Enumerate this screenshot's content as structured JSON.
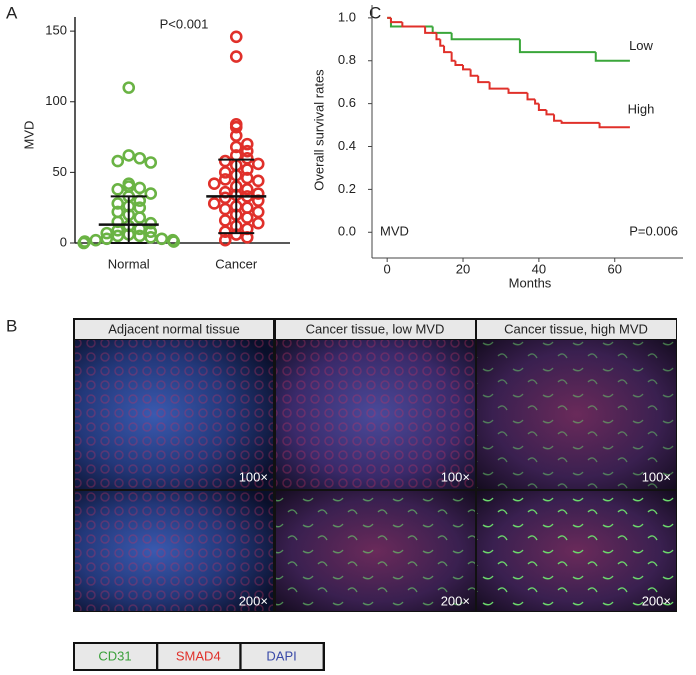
{
  "figure": {
    "panel_labels": [
      "A",
      "B",
      "C"
    ],
    "panel_b": {
      "columns": [
        "Adjacent normal tissue",
        "Cancer tissue, low MVD",
        "Cancer tissue, high MVD"
      ],
      "magnifications": [
        "100×",
        "200×"
      ],
      "stains": [
        {
          "label": "CD31",
          "color": "#3aa03a"
        },
        {
          "label": "SMAD4",
          "color": "#e0302a"
        },
        {
          "label": "DAPI",
          "color": "#3a4aa8"
        }
      ]
    }
  },
  "chart_data": [
    {
      "type": "dot",
      "annotation": "P<0.001",
      "ylabel": "MVD",
      "categories": [
        "Normal",
        "Cancer"
      ],
      "colors": [
        "#6ab344",
        "#e0302a"
      ],
      "points": [
        [
          110,
          62,
          60,
          58,
          57,
          42,
          40,
          39,
          38,
          35,
          33,
          30,
          28,
          26,
          25,
          22,
          20,
          18,
          15,
          14,
          12,
          10,
          9,
          8,
          7,
          6,
          5,
          5,
          4,
          3,
          3,
          2,
          2,
          1,
          1,
          0
        ],
        [
          146,
          132,
          84,
          82,
          76,
          70,
          68,
          65,
          62,
          60,
          58,
          56,
          55,
          52,
          50,
          48,
          46,
          45,
          44,
          42,
          40,
          38,
          36,
          35,
          34,
          33,
          32,
          30,
          28,
          26,
          25,
          24,
          22,
          20,
          18,
          16,
          14,
          12,
          10,
          8,
          6,
          4,
          2
        ]
      ],
      "means": [
        13,
        33
      ],
      "lower": [
        0,
        7
      ],
      "upper": [
        33,
        59
      ],
      "ylim": [
        0,
        160
      ],
      "yticks": [
        0,
        50,
        100,
        150
      ]
    },
    {
      "type": "step",
      "xlabel": "Months",
      "ylabel": "Overall survival rates",
      "annotations": [
        "MVD",
        "P=0.006"
      ],
      "series": [
        {
          "name": "Low",
          "color": "#3aa63a",
          "x": [
            0,
            1,
            12,
            17,
            35,
            55,
            64
          ],
          "values": [
            1.0,
            0.96,
            0.93,
            0.9,
            0.84,
            0.8,
            0.8
          ]
        },
        {
          "name": "High",
          "color": "#e0302a",
          "x": [
            0,
            1,
            4,
            10,
            13,
            14,
            15,
            17,
            18,
            20,
            22,
            24,
            27,
            32,
            37,
            39,
            40,
            42,
            44,
            46,
            56,
            64
          ],
          "values": [
            1.0,
            0.98,
            0.96,
            0.93,
            0.9,
            0.87,
            0.84,
            0.8,
            0.78,
            0.76,
            0.73,
            0.7,
            0.67,
            0.65,
            0.62,
            0.6,
            0.57,
            0.55,
            0.52,
            0.51,
            0.49,
            0.49
          ]
        }
      ],
      "xlim": [
        -4,
        78
      ],
      "xticks": [
        0,
        20,
        40,
        60
      ],
      "ylim": [
        -0.12,
        1.06
      ],
      "yticks": [
        {
          "value": 0,
          "label": "0.0"
        },
        0.2,
        0.4,
        0.6,
        0.8,
        {
          "value": 1,
          "label": "1.0"
        }
      ]
    }
  ]
}
